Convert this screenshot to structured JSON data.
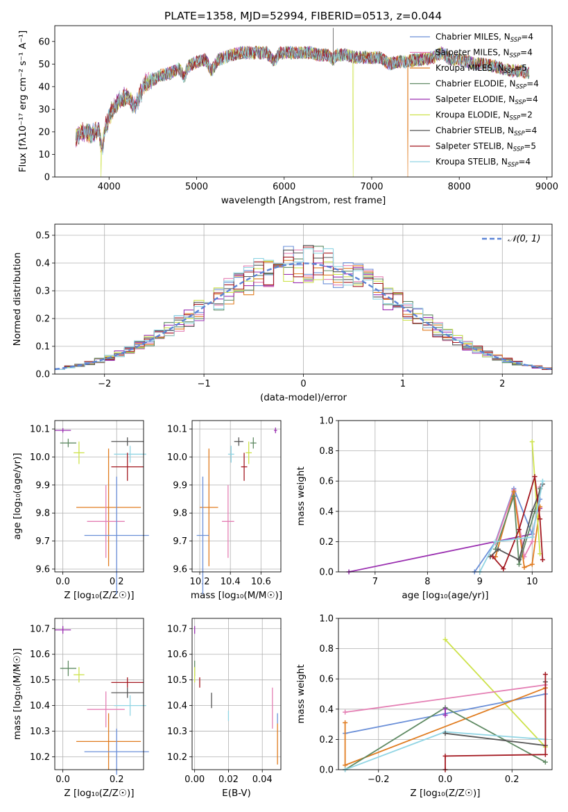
{
  "figure": {
    "title": "PLATE=1358, MJD=52994, FIBERID=0513, z=0.044",
    "colors": {
      "chabrier_miles": "#6a8fd8",
      "salpeter_miles": "#e47fb4",
      "kroupa_miles": "#e07b1e",
      "chabrier_elodie": "#5f8a63",
      "salpeter_elodie": "#9a2fb0",
      "kroupa_elodie": "#cde24a",
      "chabrier_stelib": "#555555",
      "salpeter_stelib": "#a31820",
      "kroupa_stelib": "#8fd4e3",
      "normal_curve": "#5b84d6"
    }
  },
  "chart_data": [
    {
      "id": "spectrum",
      "type": "line",
      "title": "PLATE=1358, MJD=52994, FIBERID=0513, z=0.044",
      "xlabel": "wavelength [Angstrom, rest frame]",
      "ylabel": "Flux [fλ10⁻¹⁷ erg cm⁻² s⁻¹ A⁻¹]",
      "xlim": [
        3380,
        9060
      ],
      "ylim": [
        0,
        67
      ],
      "xticks": [
        4000,
        5000,
        6000,
        7000,
        8000,
        9000
      ],
      "yticks": [
        0,
        10,
        20,
        30,
        40,
        50,
        60
      ],
      "legend_position": "top-right",
      "legend": [
        {
          "label": "Chabrier MILES, N",
          "sub": "SSP",
          "tail": "=4",
          "color_key": "chabrier_miles"
        },
        {
          "label": "Salpeter MILES, N",
          "sub": "SSP",
          "tail": "=4",
          "color_key": "salpeter_miles"
        },
        {
          "label": "Kroupa MILES, N",
          "sub": "SSP",
          "tail": "=5",
          "color_key": "kroupa_miles"
        },
        {
          "label": "Chabrier ELODIE, N",
          "sub": "SSP",
          "tail": "=4",
          "color_key": "chabrier_elodie"
        },
        {
          "label": "Salpeter ELODIE, N",
          "sub": "SSP",
          "tail": "=4",
          "color_key": "salpeter_elodie"
        },
        {
          "label": "Kroupa ELODIE, N",
          "sub": "SSP",
          "tail": "=2",
          "color_key": "kroupa_elodie"
        },
        {
          "label": "Chabrier STELIB, N",
          "sub": "SSP",
          "tail": "=4",
          "color_key": "chabrier_stelib"
        },
        {
          "label": "Salpeter STELIB, N",
          "sub": "SSP",
          "tail": "=5",
          "color_key": "salpeter_stelib"
        },
        {
          "label": "Kroupa STELIB, N",
          "sub": "SSP",
          "tail": "=4",
          "color_key": "kroupa_stelib"
        }
      ],
      "continuum": [
        [
          3620,
          18
        ],
        [
          3700,
          20
        ],
        [
          3800,
          19
        ],
        [
          3880,
          21
        ],
        [
          3920,
          12
        ],
        [
          3960,
          22
        ],
        [
          4000,
          27
        ],
        [
          4100,
          33
        ],
        [
          4200,
          36
        ],
        [
          4300,
          31
        ],
        [
          4400,
          41
        ],
        [
          4500,
          43
        ],
        [
          4600,
          45
        ],
        [
          4700,
          46
        ],
        [
          4800,
          48
        ],
        [
          4860,
          44
        ],
        [
          4900,
          49
        ],
        [
          5000,
          51
        ],
        [
          5100,
          52
        ],
        [
          5170,
          47
        ],
        [
          5250,
          52
        ],
        [
          5400,
          54
        ],
        [
          5500,
          55
        ],
        [
          5600,
          55
        ],
        [
          5700,
          55
        ],
        [
          5800,
          55
        ],
        [
          5890,
          51
        ],
        [
          5950,
          55
        ],
        [
          6000,
          55
        ],
        [
          6100,
          55
        ],
        [
          6200,
          55
        ],
        [
          6300,
          55
        ],
        [
          6400,
          54
        ],
        [
          6500,
          54
        ],
        [
          6560,
          52
        ],
        [
          6600,
          54
        ],
        [
          6700,
          54
        ],
        [
          6800,
          53
        ],
        [
          6900,
          53
        ],
        [
          7000,
          53
        ],
        [
          7100,
          53
        ],
        [
          7200,
          50
        ],
        [
          7300,
          51
        ],
        [
          7400,
          51
        ],
        [
          7500,
          52
        ],
        [
          7600,
          52
        ],
        [
          7700,
          53
        ],
        [
          7800,
          55
        ],
        [
          7900,
          52
        ],
        [
          8000,
          52
        ],
        [
          8100,
          51
        ],
        [
          8200,
          50
        ],
        [
          8300,
          50
        ],
        [
          8400,
          49
        ],
        [
          8500,
          48
        ],
        [
          8600,
          47
        ],
        [
          8700,
          47
        ],
        [
          8800,
          46
        ]
      ],
      "dropouts": [
        [
          3910,
          "kroupa_elodie"
        ],
        [
          6790,
          "kroupa_elodie"
        ],
        [
          7410,
          "kroupa_miles"
        ]
      ]
    },
    {
      "id": "residuals",
      "type": "step",
      "xlabel": "(data-model)/error",
      "ylabel": "Normed distribution",
      "xlim": [
        -2.5,
        2.5
      ],
      "ylim": [
        0,
        0.54
      ],
      "xticks": [
        -2,
        -1,
        0,
        1,
        2
      ],
      "yticks": [
        0.0,
        0.1,
        0.2,
        0.3,
        0.4,
        0.5
      ],
      "grid": true,
      "legend_position": "top-right",
      "legend": [
        {
          "label": "𝒩(0, 1)",
          "color_key": "normal_curve",
          "style": "dashed"
        }
      ],
      "bin_width": 0.1
    },
    {
      "id": "age_vs_Z",
      "type": "errorbar",
      "xlabel": "Z [log₁₀(Z/Z☉)]",
      "ylabel": "age  [log₁₀(age/yr)]",
      "xlim": [
        -0.03,
        0.3
      ],
      "ylim": [
        9.59,
        10.13
      ],
      "xticks": [
        0.0,
        0.2
      ],
      "yticks": [
        9.6,
        9.7,
        9.8,
        9.9,
        10.0,
        10.1
      ],
      "grid": true,
      "points": [
        {
          "s": "salpeter_elodie",
          "x": 0.0,
          "xe": 0.03,
          "y": 10.095,
          "ye": 0.008
        },
        {
          "s": "chabrier_elodie",
          "x": 0.02,
          "xe": 0.03,
          "y": 10.05,
          "ye": 0.015
        },
        {
          "s": "kroupa_elodie",
          "x": 0.06,
          "xe": 0.02,
          "y": 10.015,
          "ye": 0.04
        },
        {
          "s": "chabrier_stelib",
          "x": 0.24,
          "xe": 0.06,
          "y": 10.055,
          "ye": 0.015
        },
        {
          "s": "kroupa_stelib",
          "x": 0.25,
          "xe": 0.06,
          "y": 10.01,
          "ye": 0.03
        },
        {
          "s": "salpeter_stelib",
          "x": 0.24,
          "xe": 0.06,
          "y": 9.965,
          "ye": 0.05
        },
        {
          "s": "kroupa_miles",
          "x": 0.17,
          "xe": 0.12,
          "y": 9.82,
          "ye": 0.21
        },
        {
          "s": "salpeter_miles",
          "x": 0.16,
          "xe": 0.07,
          "y": 9.77,
          "ye": 0.13
        },
        {
          "s": "chabrier_miles",
          "x": 0.2,
          "xe": 0.12,
          "y": 9.72,
          "ye": 0.21
        }
      ]
    },
    {
      "id": "age_vs_mass",
      "type": "errorbar",
      "xlabel": "mass [log₁₀(M/M☉)]",
      "xlim": [
        10.15,
        10.73
      ],
      "ylim": [
        9.59,
        10.13
      ],
      "xticks": [
        10.2,
        10.4,
        10.6
      ],
      "yticks": [
        9.6,
        9.7,
        9.8,
        9.9,
        10.0,
        10.1
      ],
      "grid": true,
      "points": [
        {
          "s": "salpeter_elodie",
          "x": 10.695,
          "xe": 0.01,
          "y": 10.095,
          "ye": 0.01
        },
        {
          "s": "chabrier_elodie",
          "x": 10.55,
          "xe": 0.02,
          "y": 10.05,
          "ye": 0.02
        },
        {
          "s": "kroupa_elodie",
          "x": 10.52,
          "xe": 0.02,
          "y": 10.015,
          "ye": 0.04
        },
        {
          "s": "chabrier_stelib",
          "x": 10.455,
          "xe": 0.03,
          "y": 10.055,
          "ye": 0.015
        },
        {
          "s": "kroupa_stelib",
          "x": 10.405,
          "xe": 0.02,
          "y": 10.01,
          "ye": 0.03
        },
        {
          "s": "salpeter_stelib",
          "x": 10.49,
          "xe": 0.02,
          "y": 9.965,
          "ye": 0.05
        },
        {
          "s": "kroupa_miles",
          "x": 10.26,
          "xe": 0.06,
          "y": 9.82,
          "ye": 0.21
        },
        {
          "s": "salpeter_miles",
          "x": 10.385,
          "xe": 0.04,
          "y": 9.77,
          "ye": 0.13
        },
        {
          "s": "chabrier_miles",
          "x": 10.22,
          "xe": 0.04,
          "y": 9.72,
          "ye": 0.21
        }
      ]
    },
    {
      "id": "weight_vs_age",
      "type": "line",
      "xlabel": "age  [log₁₀(age/yr)]",
      "ylabel": "mass weight",
      "xlim": [
        6.3,
        10.38
      ],
      "ylim": [
        0,
        1.0
      ],
      "xticks": [
        7,
        8,
        9,
        10
      ],
      "yticks": [
        0.0,
        0.2,
        0.4,
        0.6,
        0.8,
        1.0
      ],
      "grid": true,
      "series": [
        {
          "s": "salpeter_elodie",
          "points": [
            [
              6.5,
              0.0
            ],
            [
              10.0,
              0.25
            ],
            [
              10.1,
              0.4
            ],
            [
              10.15,
              0.42
            ]
          ]
        },
        {
          "s": "chabrier_miles",
          "points": [
            [
              8.9,
              0.0
            ],
            [
              9.3,
              0.2
            ],
            [
              9.65,
              0.55
            ],
            [
              10.0,
              0.25
            ],
            [
              10.15,
              0.48
            ]
          ]
        },
        {
          "s": "salpeter_miles",
          "points": [
            [
              9.3,
              0.19
            ],
            [
              9.65,
              0.54
            ],
            [
              9.85,
              0.1
            ],
            [
              10.0,
              0.2
            ],
            [
              10.15,
              0.56
            ]
          ]
        },
        {
          "s": "kroupa_miles",
          "points": [
            [
              9.3,
              0.1
            ],
            [
              9.65,
              0.53
            ],
            [
              9.85,
              0.03
            ],
            [
              10.0,
              0.05
            ],
            [
              10.15,
              0.43
            ]
          ]
        },
        {
          "s": "chabrier_elodie",
          "points": [
            [
              9.3,
              0.15
            ],
            [
              9.65,
              0.5
            ],
            [
              9.75,
              0.05
            ],
            [
              10.05,
              0.4
            ],
            [
              10.15,
              0.55
            ]
          ]
        },
        {
          "s": "kroupa_elodie",
          "points": [
            [
              10.0,
              0.86
            ],
            [
              10.15,
              0.12
            ]
          ]
        },
        {
          "s": "chabrier_stelib",
          "points": [
            [
              9.2,
              0.1
            ],
            [
              9.35,
              0.15
            ],
            [
              9.75,
              0.08
            ],
            [
              10.0,
              0.4
            ],
            [
              10.2,
              0.58
            ]
          ]
        },
        {
          "s": "salpeter_stelib",
          "points": [
            [
              9.25,
              0.1
            ],
            [
              9.45,
              0.02
            ],
            [
              9.75,
              0.28
            ],
            [
              10.05,
              0.63
            ],
            [
              10.15,
              0.35
            ],
            [
              10.2,
              0.08
            ]
          ]
        },
        {
          "s": "kroupa_stelib",
          "points": [
            [
              9.0,
              0.0
            ],
            [
              9.3,
              0.2
            ],
            [
              10.0,
              0.23
            ],
            [
              10.2,
              0.6
            ]
          ]
        }
      ]
    },
    {
      "id": "mass_vs_Z",
      "type": "errorbar",
      "xlabel": "Z [log₁₀(Z/Z☉)]",
      "ylabel": "mass [log₁₀(M/M☉)]",
      "xlim": [
        -0.03,
        0.3
      ],
      "ylim": [
        10.15,
        10.74
      ],
      "xticks": [
        0.0,
        0.2
      ],
      "yticks": [
        10.2,
        10.3,
        10.4,
        10.5,
        10.6,
        10.7
      ],
      "grid": true,
      "points": [
        {
          "s": "salpeter_elodie",
          "x": 0.0,
          "xe": 0.03,
          "y": 10.695,
          "ye": 0.015
        },
        {
          "s": "chabrier_elodie",
          "x": 0.02,
          "xe": 0.03,
          "y": 10.545,
          "ye": 0.03
        },
        {
          "s": "kroupa_elodie",
          "x": 0.06,
          "xe": 0.02,
          "y": 10.52,
          "ye": 0.03
        },
        {
          "s": "salpeter_stelib",
          "x": 0.24,
          "xe": 0.06,
          "y": 10.49,
          "ye": 0.02
        },
        {
          "s": "chabrier_stelib",
          "x": 0.24,
          "xe": 0.06,
          "y": 10.45,
          "ye": 0.02
        },
        {
          "s": "kroupa_stelib",
          "x": 0.25,
          "xe": 0.06,
          "y": 10.4,
          "ye": 0.04
        },
        {
          "s": "salpeter_miles",
          "x": 0.16,
          "xe": 0.07,
          "y": 10.385,
          "ye": 0.07
        },
        {
          "s": "kroupa_miles",
          "x": 0.17,
          "xe": 0.12,
          "y": 10.26,
          "ye": 0.11
        },
        {
          "s": "chabrier_miles",
          "x": 0.2,
          "xe": 0.12,
          "y": 10.22,
          "ye": 0.09
        }
      ]
    },
    {
      "id": "mass_vs_ebv",
      "type": "errorbar",
      "xlabel": "E(B-V)",
      "xlim": [
        -0.0015,
        0.051
      ],
      "ylim": [
        10.15,
        10.74
      ],
      "xticks": [
        0.0,
        0.02,
        0.04
      ],
      "yticks": [
        10.2,
        10.3,
        10.4,
        10.5,
        10.6,
        10.7
      ],
      "grid": true,
      "points": [
        {
          "s": "salpeter_elodie",
          "x": 0.0,
          "xe": 0.0,
          "y": 10.695,
          "ye": 0.015
        },
        {
          "s": "chabrier_elodie",
          "x": 0.0,
          "xe": 0.0,
          "y": 10.545,
          "ye": 0.03
        },
        {
          "s": "kroupa_elodie",
          "x": 0.0,
          "xe": 0.0,
          "y": 10.52,
          "ye": 0.03
        },
        {
          "s": "salpeter_stelib",
          "x": 0.003,
          "xe": 0.0,
          "y": 10.49,
          "ye": 0.02
        },
        {
          "s": "chabrier_stelib",
          "x": 0.01,
          "xe": 0.0,
          "y": 10.42,
          "ye": 0.03
        },
        {
          "s": "kroupa_stelib",
          "x": 0.02,
          "xe": 0.0,
          "y": 10.36,
          "ye": 0.02
        },
        {
          "s": "salpeter_miles",
          "x": 0.046,
          "xe": 0.0,
          "y": 10.39,
          "ye": 0.08
        },
        {
          "s": "kroupa_miles",
          "x": 0.049,
          "xe": 0.0,
          "y": 10.25,
          "ye": 0.08
        },
        {
          "s": "chabrier_miles",
          "x": 0.049,
          "xe": 0.0,
          "y": 10.35,
          "ye": 0.02
        }
      ]
    },
    {
      "id": "weight_vs_Z",
      "type": "line",
      "xlabel": "Z [log₁₀(Z/Z☉)]",
      "ylabel": "mass weight",
      "xlim": [
        -0.32,
        0.32
      ],
      "ylim": [
        0,
        1.0
      ],
      "xticks": [
        -0.2,
        0.0,
        0.2
      ],
      "yticks": [
        0.0,
        0.2,
        0.4,
        0.6,
        0.8,
        1.0
      ],
      "grid": true,
      "series": [
        {
          "s": "kroupa_elodie",
          "points": [
            [
              0.0,
              0.86
            ],
            [
              0.3,
              0.15
            ]
          ]
        },
        {
          "s": "salpeter_miles",
          "points": [
            [
              -0.3,
              0.38
            ],
            [
              0.3,
              0.56
            ]
          ]
        },
        {
          "s": "chabrier_miles",
          "points": [
            [
              -0.3,
              0.24
            ],
            [
              0.0,
              0.37
            ],
            [
              0.3,
              0.5
            ]
          ]
        },
        {
          "s": "kroupa_miles",
          "points": [
            [
              -0.3,
              0.31
            ],
            [
              -0.3,
              0.03
            ],
            [
              0.3,
              0.54
            ]
          ]
        },
        {
          "s": "chabrier_elodie",
          "points": [
            [
              -0.3,
              0.0
            ],
            [
              0.0,
              0.41
            ],
            [
              0.3,
              0.05
            ]
          ]
        },
        {
          "s": "kroupa_stelib",
          "points": [
            [
              -0.3,
              0.0
            ],
            [
              0.0,
              0.25
            ],
            [
              0.3,
              0.2
            ]
          ]
        },
        {
          "s": "chabrier_stelib",
          "points": [
            [
              0.0,
              0.24
            ],
            [
              0.3,
              0.16
            ],
            [
              0.3,
              0.58
            ]
          ]
        },
        {
          "s": "salpeter_stelib",
          "points": [
            [
              0.0,
              0.0
            ],
            [
              0.0,
              0.09
            ],
            [
              0.3,
              0.1
            ],
            [
              0.3,
              0.63
            ]
          ]
        },
        {
          "s": "salpeter_elodie",
          "points": [
            [
              0.0,
              0.36
            ],
            [
              0.0,
              0.4
            ]
          ]
        }
      ]
    }
  ]
}
